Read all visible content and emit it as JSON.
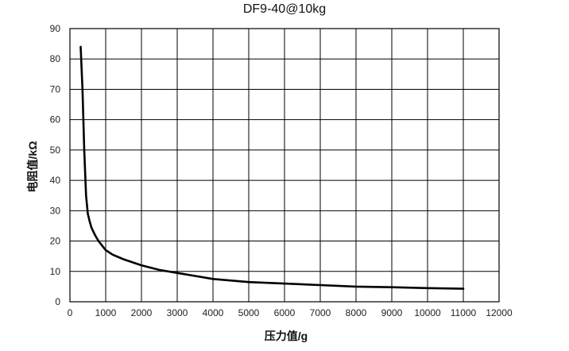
{
  "chart_data": {
    "type": "line",
    "title": "DF9-40@10kg",
    "xlabel": "压力值/g",
    "ylabel": "电阻值/kΩ",
    "xlim": [
      0,
      12000
    ],
    "ylim": [
      0,
      90
    ],
    "x_ticks": [
      "0",
      "1000",
      "2000",
      "3000",
      "4000",
      "5000",
      "6000",
      "7000",
      "8000",
      "9000",
      "10000",
      "11000",
      "12000"
    ],
    "y_ticks": [
      "0",
      "10",
      "20",
      "30",
      "40",
      "50",
      "60",
      "70",
      "80",
      "90"
    ],
    "grid": true,
    "series": [
      {
        "color": "#000000",
        "x": [
          300,
          350,
          400,
          450,
          500,
          550,
          600,
          700,
          800,
          1000,
          1200,
          1500,
          2000,
          2500,
          3000,
          3500,
          4000,
          5000,
          6000,
          7000,
          8000,
          9000,
          10000,
          11000
        ],
        "y": [
          84,
          70,
          50,
          35,
          29,
          26.5,
          24.5,
          22,
          20,
          17,
          15.5,
          14,
          12,
          10.5,
          9.5,
          8.5,
          7.5,
          6.5,
          6,
          5.5,
          5,
          4.8,
          4.5,
          4.3
        ]
      }
    ]
  }
}
